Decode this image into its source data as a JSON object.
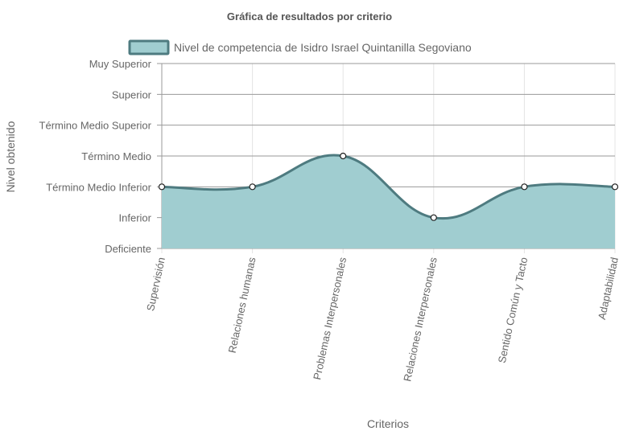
{
  "chart_data": {
    "type": "area",
    "title": "Gráfica de resultados por criterio",
    "xlabel": "Criterios",
    "ylabel": "Nivel obtenido",
    "categories": [
      "Supervisión",
      "Relaciones humanas",
      "Problemas Interpersonales",
      "Relaciones Interpersonales",
      "Sentido Común y Tacto",
      "Adaptabilidad"
    ],
    "y_levels": [
      "Deficiente",
      "Inferior",
      "Término Medio Inferior",
      "Término Medio",
      "Término Medio Superior",
      "Superior",
      "Muy Superior"
    ],
    "series": [
      {
        "name": "Nivel de competencia de Isidro Israel Quintanilla Segoviano",
        "values": [
          2,
          2,
          3,
          1,
          2,
          2
        ],
        "value_labels": [
          "Término Medio Inferior",
          "Término Medio Inferior",
          "Término Medio",
          "Inferior",
          "Término Medio Inferior",
          "Término Medio Inferior"
        ]
      }
    ],
    "ylim": [
      0,
      6
    ],
    "grid": true,
    "legend_position": "top",
    "colors": {
      "fill": "#a0cdd0",
      "line": "#4e7b80",
      "grid": "#e4e4e4",
      "hgrid": "#9a9a9a"
    }
  }
}
